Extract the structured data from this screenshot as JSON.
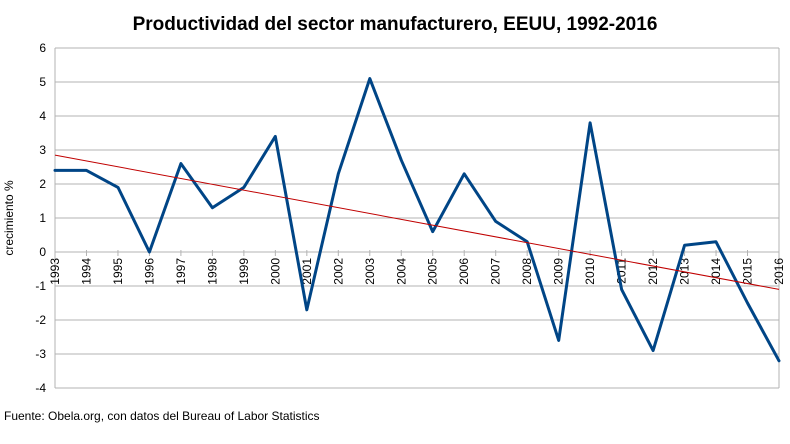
{
  "chart_data": {
    "type": "line",
    "title": "Productividad del sector manufacturero, EEUU, 1992-2016",
    "ylabel": "crecimiento %",
    "xlabel": "",
    "categories": [
      "1993",
      "1994",
      "1995",
      "1996",
      "1997",
      "1998",
      "1999",
      "2000",
      "2001",
      "2002",
      "2003",
      "2004",
      "2005",
      "2006",
      "2007",
      "2008",
      "2009",
      "2010",
      "2011",
      "2012",
      "2013",
      "2014",
      "2015",
      "2016"
    ],
    "series": [
      {
        "color": "#004586",
        "values": [
          2.4,
          2.4,
          1.9,
          0.0,
          2.6,
          1.3,
          1.9,
          3.4,
          -1.7,
          2.3,
          5.1,
          2.7,
          0.6,
          2.3,
          0.9,
          0.3,
          -2.6,
          3.8,
          -1.1,
          -2.9,
          0.2,
          0.3,
          -1.5,
          -3.2
        ]
      }
    ],
    "trendline": {
      "color": "#c00000",
      "start": 2.85,
      "end": -1.1
    },
    "ylim": [
      -4,
      6
    ],
    "yticks": [
      -4,
      -3,
      -2,
      -1,
      0,
      1,
      2,
      3,
      4,
      5,
      6
    ],
    "grid": true,
    "legend": "none"
  },
  "source": "Fuente: Obela.org, con datos del Bureau of Labor Statistics"
}
